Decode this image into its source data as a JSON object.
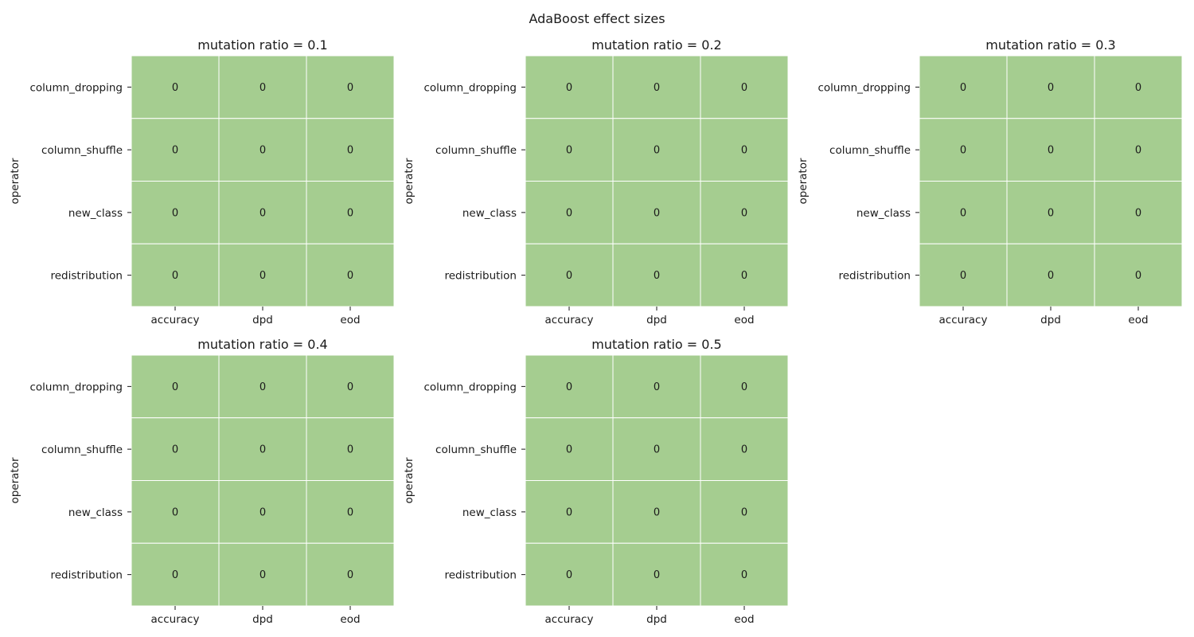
{
  "chart_data": {
    "type": "heatmap",
    "title": "AdaBoost effect sizes",
    "cell_color": "#a5cd90",
    "grid_color": "#ffffff",
    "panels": [
      {
        "title": "mutation ratio = 0.1",
        "ylabel": "operator",
        "xlabel": "",
        "rows": [
          "column_dropping",
          "column_shuffle",
          "new_class",
          "redistribution"
        ],
        "columns": [
          "accuracy",
          "dpd",
          "eod"
        ],
        "values": [
          [
            0,
            0,
            0
          ],
          [
            0,
            0,
            0
          ],
          [
            0,
            0,
            0
          ],
          [
            0,
            0,
            0
          ]
        ]
      },
      {
        "title": "mutation ratio = 0.2",
        "ylabel": "operator",
        "xlabel": "",
        "rows": [
          "column_dropping",
          "column_shuffle",
          "new_class",
          "redistribution"
        ],
        "columns": [
          "accuracy",
          "dpd",
          "eod"
        ],
        "values": [
          [
            0,
            0,
            0
          ],
          [
            0,
            0,
            0
          ],
          [
            0,
            0,
            0
          ],
          [
            0,
            0,
            0
          ]
        ]
      },
      {
        "title": "mutation ratio = 0.3",
        "ylabel": "operator",
        "xlabel": "",
        "rows": [
          "column_dropping",
          "column_shuffle",
          "new_class",
          "redistribution"
        ],
        "columns": [
          "accuracy",
          "dpd",
          "eod"
        ],
        "values": [
          [
            0,
            0,
            0
          ],
          [
            0,
            0,
            0
          ],
          [
            0,
            0,
            0
          ],
          [
            0,
            0,
            0
          ]
        ]
      },
      {
        "title": "mutation ratio = 0.4",
        "ylabel": "operator",
        "xlabel": "",
        "rows": [
          "column_dropping",
          "column_shuffle",
          "new_class",
          "redistribution"
        ],
        "columns": [
          "accuracy",
          "dpd",
          "eod"
        ],
        "values": [
          [
            0,
            0,
            0
          ],
          [
            0,
            0,
            0
          ],
          [
            0,
            0,
            0
          ],
          [
            0,
            0,
            0
          ]
        ]
      },
      {
        "title": "mutation ratio = 0.5",
        "ylabel": "operator",
        "xlabel": "",
        "rows": [
          "column_dropping",
          "column_shuffle",
          "new_class",
          "redistribution"
        ],
        "columns": [
          "accuracy",
          "dpd",
          "eod"
        ],
        "values": [
          [
            0,
            0,
            0
          ],
          [
            0,
            0,
            0
          ],
          [
            0,
            0,
            0
          ],
          [
            0,
            0,
            0
          ]
        ]
      }
    ]
  }
}
